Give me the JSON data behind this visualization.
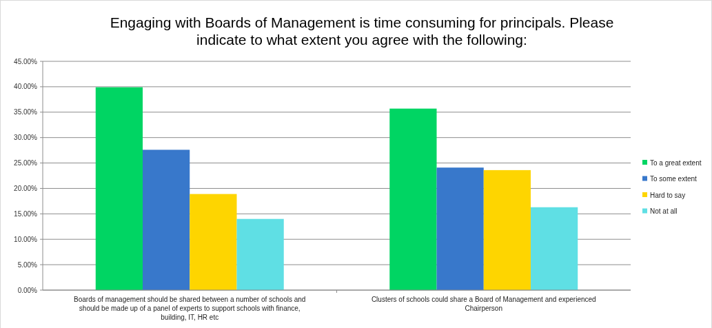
{
  "chart_data": {
    "type": "bar",
    "title": "Engaging with Boards of Management is time consuming for principals. Please indicate to what extent you agree with the following:",
    "categories": [
      "Boards of management should be shared between a number of schools and should be made up of a panel of experts to support schools with finance, building, IT, HR etc",
      "Clusters of schools could share a Board of Management and experienced Chairperson"
    ],
    "series": [
      {
        "name": "To a great extent",
        "color": "#00d563",
        "values": [
          39.9,
          35.7
        ]
      },
      {
        "name": "To some extent",
        "color": "#3878cb",
        "values": [
          27.6,
          24.1
        ]
      },
      {
        "name": "Hard to say",
        "color": "#fed500",
        "values": [
          18.9,
          23.6
        ]
      },
      {
        "name": "Not at all",
        "color": "#5fdfe4",
        "values": [
          14.0,
          16.3
        ]
      }
    ],
    "ylim": [
      0,
      45
    ],
    "yticks": [
      {
        "value": 0,
        "label": "0.00%"
      },
      {
        "value": 5,
        "label": "5.00%"
      },
      {
        "value": 10,
        "label": "10.00%"
      },
      {
        "value": 15,
        "label": "15.00%"
      },
      {
        "value": 20,
        "label": "20.00%"
      },
      {
        "value": 25,
        "label": "25.00%"
      },
      {
        "value": 30,
        "label": "30.00%"
      },
      {
        "value": 35,
        "label": "35.00%"
      },
      {
        "value": 40,
        "label": "40.00%"
      },
      {
        "value": 45,
        "label": "45.00%"
      }
    ],
    "grid": "y",
    "legend": "right"
  }
}
